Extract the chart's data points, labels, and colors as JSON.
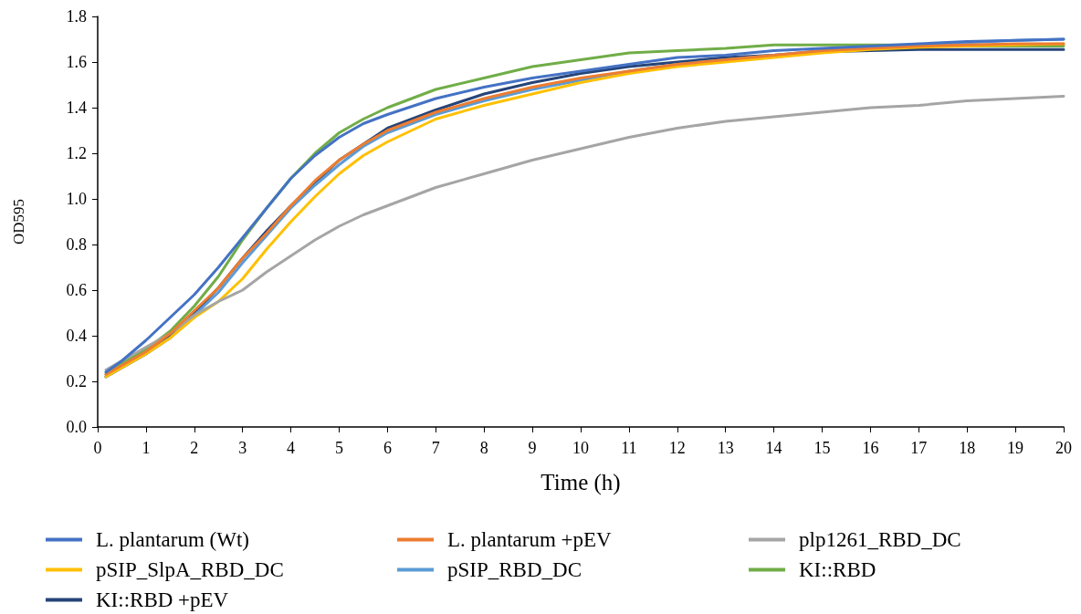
{
  "chart_data": {
    "type": "line",
    "xlabel": "Time (h)",
    "ylabel": "OD595",
    "x": [
      0.17,
      0.5,
      1,
      1.5,
      2,
      2.5,
      3,
      3.5,
      4,
      4.5,
      5,
      5.5,
      6,
      7,
      8,
      9,
      10,
      11,
      12,
      13,
      14,
      15,
      16,
      17,
      18,
      19,
      20
    ],
    "xlim": [
      0,
      20
    ],
    "xticks": [
      0,
      1,
      2,
      3,
      4,
      5,
      6,
      7,
      8,
      9,
      10,
      11,
      12,
      13,
      14,
      15,
      16,
      17,
      18,
      19,
      20
    ],
    "ylim": [
      0,
      1.8
    ],
    "yticks": [
      {
        "value": 0,
        "label": "0.0"
      },
      0.2,
      0.4,
      0.6,
      0.8,
      {
        "value": 1,
        "label": "1.0"
      },
      1.2,
      1.4,
      1.6,
      1.8
    ],
    "grid": false,
    "legend": "bottom",
    "marker": "none",
    "line_style": "solid",
    "series": [
      {
        "name": "L. plantarum (Wt)",
        "color": "#4472c4",
        "values": [
          0.24,
          0.29,
          0.38,
          0.48,
          0.58,
          0.7,
          0.83,
          0.96,
          1.09,
          1.19,
          1.27,
          1.33,
          1.37,
          1.44,
          1.49,
          1.53,
          1.56,
          1.59,
          1.62,
          1.63,
          1.65,
          1.66,
          1.67,
          1.68,
          1.69,
          1.695,
          1.7
        ]
      },
      {
        "name": "L. plantarum +pEV",
        "color": "#ed7d31",
        "values": [
          0.23,
          0.27,
          0.33,
          0.41,
          0.51,
          0.61,
          0.74,
          0.85,
          0.97,
          1.08,
          1.17,
          1.24,
          1.3,
          1.38,
          1.44,
          1.49,
          1.53,
          1.56,
          1.59,
          1.61,
          1.63,
          1.65,
          1.66,
          1.67,
          1.675,
          1.68,
          1.68
        ]
      },
      {
        "name": "plp1261_RBD_DC",
        "color": "#a5a5a5",
        "values": [
          0.25,
          0.29,
          0.35,
          0.41,
          0.49,
          0.55,
          0.6,
          0.68,
          0.75,
          0.82,
          0.88,
          0.93,
          0.97,
          1.05,
          1.11,
          1.17,
          1.22,
          1.27,
          1.31,
          1.34,
          1.36,
          1.38,
          1.4,
          1.41,
          1.43,
          1.44,
          1.45
        ]
      },
      {
        "name": "pSIP_SlpA_RBD_DC",
        "color": "#ffc000",
        "values": [
          0.22,
          0.26,
          0.32,
          0.39,
          0.48,
          0.55,
          0.65,
          0.78,
          0.9,
          1.01,
          1.11,
          1.19,
          1.25,
          1.35,
          1.41,
          1.46,
          1.51,
          1.55,
          1.58,
          1.6,
          1.62,
          1.64,
          1.655,
          1.665,
          1.67,
          1.675,
          1.68
        ]
      },
      {
        "name": "pSIP_RBD_DC",
        "color": "#5b9bd5",
        "values": [
          0.22,
          0.26,
          0.32,
          0.39,
          0.49,
          0.59,
          0.72,
          0.84,
          0.96,
          1.06,
          1.15,
          1.23,
          1.29,
          1.37,
          1.43,
          1.48,
          1.52,
          1.56,
          1.59,
          1.61,
          1.63,
          1.65,
          1.665,
          1.675,
          1.685,
          1.695,
          1.7
        ]
      },
      {
        "name": "KI::RBD",
        "color": "#70ad47",
        "values": [
          0.23,
          0.28,
          0.34,
          0.42,
          0.53,
          0.66,
          0.82,
          0.96,
          1.09,
          1.2,
          1.29,
          1.35,
          1.4,
          1.48,
          1.53,
          1.58,
          1.61,
          1.64,
          1.65,
          1.66,
          1.675,
          1.675,
          1.675,
          1.675,
          1.67,
          1.67,
          1.67
        ]
      },
      {
        "name": "KI::RBD +pEV",
        "color": "#264478",
        "values": [
          0.22,
          0.26,
          0.32,
          0.4,
          0.5,
          0.61,
          0.74,
          0.86,
          0.97,
          1.07,
          1.17,
          1.24,
          1.31,
          1.39,
          1.46,
          1.51,
          1.55,
          1.58,
          1.6,
          1.62,
          1.63,
          1.645,
          1.65,
          1.655,
          1.655,
          1.655,
          1.655
        ]
      }
    ]
  }
}
